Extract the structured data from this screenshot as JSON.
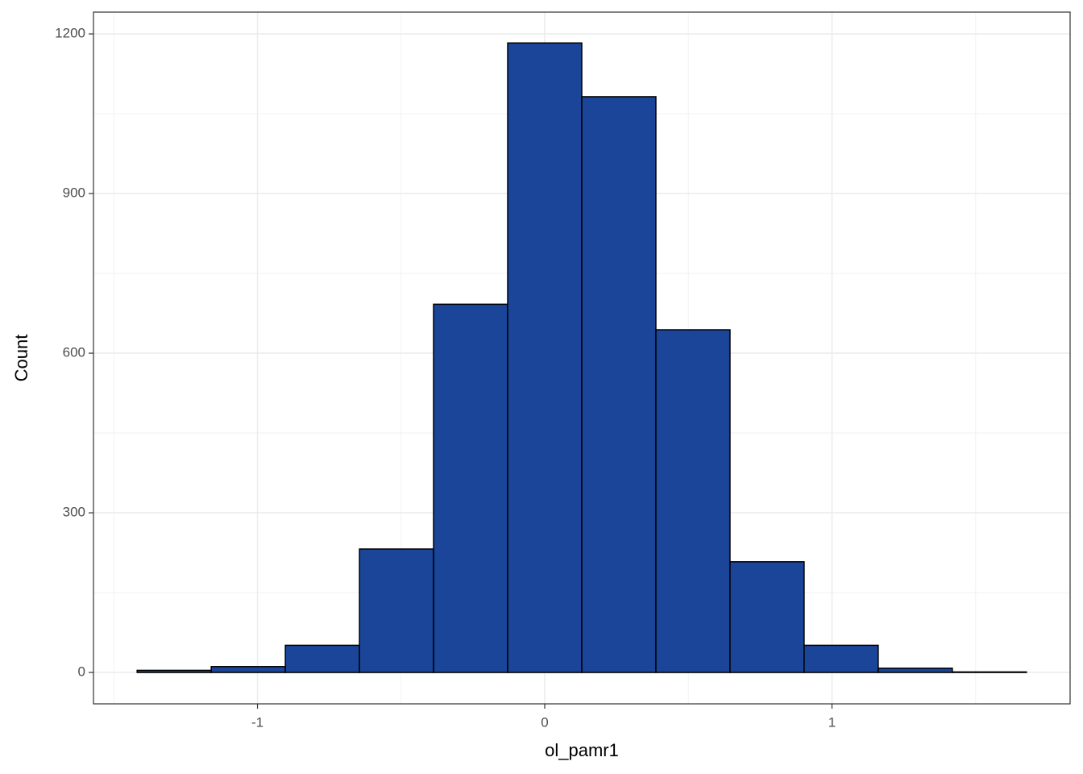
{
  "chart_data": {
    "type": "histogram",
    "x_label": "ol_pamr1",
    "y_label": "Count",
    "bins": [
      -1.419,
      -1.161,
      -0.903,
      -0.645,
      -0.387,
      -0.129,
      0.129,
      0.387,
      0.645,
      0.903,
      1.161,
      1.419,
      1.677
    ],
    "values": [
      4,
      11,
      51,
      232,
      692,
      1183,
      1082,
      644,
      208,
      51,
      8,
      1
    ],
    "color": "#1a4599",
    "edge_color": "#000000",
    "xlim": [
      -1.571,
      1.829
    ],
    "ylim": [
      -59,
      1241
    ],
    "xticks": [
      -1,
      0,
      1
    ],
    "yticks": [
      0,
      300,
      600,
      900,
      1200
    ],
    "x_minor_grid": [
      -1.5,
      -0.5,
      0.5,
      1.5
    ],
    "y_minor_grid": [
      150,
      450,
      750,
      1050
    ],
    "grid": true
  }
}
